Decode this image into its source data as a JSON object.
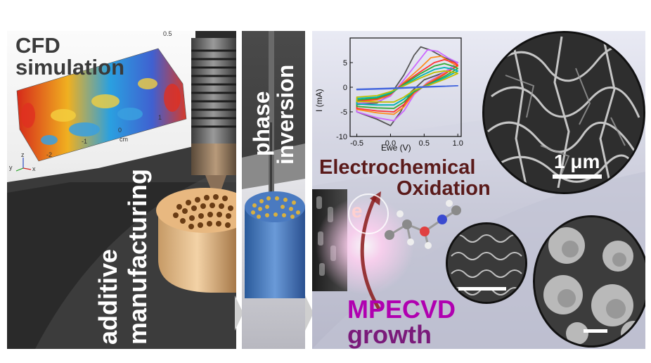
{
  "cfd": {
    "title_line1": "CFD",
    "title_line2": "simulation",
    "tick_top": "0.5",
    "tick_1": "1",
    "tick_0": "0",
    "tick_neg1": "-1",
    "tick_cm": "cm",
    "tick_neg2": "-2",
    "axis_y": "y",
    "axis_z": "z",
    "axis_x": "x"
  },
  "additive": {
    "line1": "additive",
    "line2": "manufacturing"
  },
  "phase": {
    "line1": "phase",
    "line2": "inversion"
  },
  "chart_data": {
    "type": "line",
    "xlabel": "Ewe (V)",
    "ylabel": "I (mA)",
    "xlim": [
      -0.6,
      1.05
    ],
    "ylim": [
      -10,
      10
    ],
    "xticks": [
      "-0.5",
      "0.0",
      "0.5",
      "1.0"
    ],
    "yticks": [
      "-10",
      "-5",
      "0",
      "5"
    ],
    "series": [
      {
        "color": "#555555",
        "x": [
          -0.5,
          -0.2,
          0.0,
          0.2,
          0.35,
          0.45,
          0.6,
          0.8,
          1.0,
          0.8,
          0.5,
          0.3,
          0.15,
          0.0,
          -0.2,
          -0.5
        ],
        "y": [
          -3.5,
          -3.2,
          -1.5,
          2.5,
          6.5,
          8.2,
          7.5,
          6.0,
          5.0,
          3.0,
          1.5,
          -1.0,
          -5.0,
          -7.8,
          -6.5,
          -5.0
        ]
      },
      {
        "color": "#cc66ff",
        "x": [
          -0.5,
          -0.2,
          0.0,
          0.2,
          0.4,
          0.55,
          0.7,
          0.85,
          1.0,
          0.8,
          0.55,
          0.35,
          0.2,
          0.05,
          -0.2,
          -0.5
        ],
        "y": [
          -3.3,
          -3.0,
          -1.8,
          1.5,
          5.0,
          7.6,
          7.3,
          6.0,
          5.0,
          3.0,
          1.0,
          -1.5,
          -4.8,
          -6.8,
          -6.2,
          -5.0
        ]
      },
      {
        "color": "#ff8c1a",
        "x": [
          -0.5,
          -0.2,
          0.0,
          0.2,
          0.45,
          0.6,
          0.75,
          0.9,
          1.0,
          0.8,
          0.55,
          0.35,
          0.2,
          0.05,
          -0.2,
          -0.5
        ],
        "y": [
          -3.0,
          -2.6,
          -1.5,
          1.0,
          4.0,
          6.0,
          6.3,
          5.0,
          4.3,
          2.8,
          0.8,
          -1.2,
          -4.0,
          -5.5,
          -5.2,
          -4.5
        ]
      },
      {
        "color": "#ff3333",
        "x": [
          -0.5,
          -0.2,
          0.0,
          0.2,
          0.45,
          0.65,
          0.8,
          0.95,
          1.0,
          0.8,
          0.55,
          0.35,
          0.2,
          0.05,
          -0.2,
          -0.5
        ],
        "y": [
          -2.8,
          -2.4,
          -1.4,
          0.8,
          3.2,
          5.0,
          5.6,
          5.0,
          4.5,
          2.6,
          0.6,
          -1.0,
          -3.5,
          -5.0,
          -4.8,
          -4.3
        ]
      },
      {
        "color": "#33aa33",
        "x": [
          -0.5,
          -0.2,
          0.0,
          0.2,
          0.45,
          0.65,
          0.8,
          0.95,
          1.0,
          0.8,
          0.55,
          0.35,
          0.2,
          0.05,
          -0.2,
          -0.5
        ],
        "y": [
          -2.6,
          -2.2,
          -1.3,
          0.6,
          2.8,
          4.3,
          4.8,
          4.2,
          3.8,
          2.2,
          0.5,
          -0.9,
          -3.0,
          -4.3,
          -4.2,
          -3.9
        ]
      },
      {
        "color": "#00b3b3",
        "x": [
          -0.5,
          -0.2,
          0.0,
          0.2,
          0.45,
          0.65,
          0.8,
          0.95,
          1.0,
          0.8,
          0.55,
          0.35,
          0.2,
          0.05,
          -0.2,
          -0.5
        ],
        "y": [
          -2.3,
          -2.0,
          -1.1,
          0.4,
          2.3,
          3.6,
          4.0,
          3.6,
          3.3,
          1.9,
          0.4,
          -0.7,
          -2.4,
          -3.6,
          -3.6,
          -3.4
        ]
      },
      {
        "color": "#bfbf00",
        "x": [
          -0.5,
          -0.2,
          0.0,
          0.2,
          0.45,
          0.65,
          0.8,
          0.95,
          1.0,
          0.8,
          0.55,
          0.35,
          0.2,
          0.05,
          -0.2,
          -0.5
        ],
        "y": [
          -2.0,
          -1.7,
          -0.9,
          0.3,
          1.9,
          3.0,
          3.3,
          3.0,
          2.8,
          1.6,
          0.3,
          -0.6,
          -2.0,
          -3.0,
          -3.0,
          -2.9
        ]
      },
      {
        "color": "#4466dd",
        "x": [
          -0.5,
          0.0,
          0.5,
          1.0,
          0.5,
          0.0,
          -0.5
        ],
        "y": [
          -0.4,
          -0.2,
          0.1,
          0.3,
          0.0,
          -0.3,
          -0.5
        ]
      }
    ]
  },
  "echem": {
    "line1": "Electrochemical",
    "line2": "Oxidation",
    "electron": "e"
  },
  "mpecvd": {
    "line1": "MPECVD",
    "line2": "growth"
  },
  "scalebar_label": "1 μm",
  "colors": {
    "dark_text": "#3a3a3a",
    "white_text": "#ffffff",
    "echem_text": "#5a1a1a",
    "mpecvd_text": "#b000b0",
    "growth_text": "#7a1a7a"
  }
}
